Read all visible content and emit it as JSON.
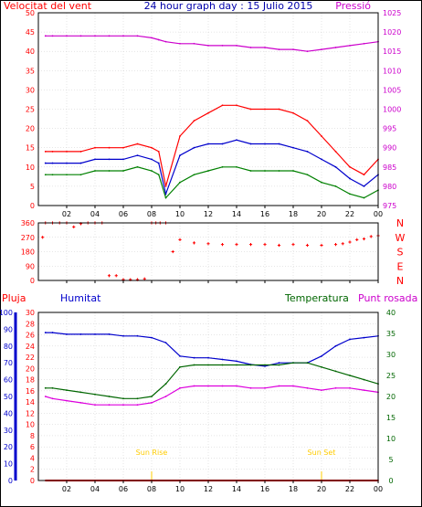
{
  "title": "24 hour graph day : 15 Julio 2015",
  "colors": {
    "wind_speed": "#ff0000",
    "wind_avg": "#0000cc",
    "wind_low": "#008000",
    "wind_dir": "#ff0000",
    "pressure": "#cc00cc",
    "rain": "#ff0000",
    "humidity": "#0000cc",
    "temperature": "#006600",
    "dewpoint": "#dd00dd",
    "sun": "#ffcc00",
    "grid": "#cccccc",
    "axis": "#000000"
  },
  "x_ticks": [
    "02",
    "04",
    "06",
    "08",
    "10",
    "12",
    "14",
    "16",
    "18",
    "20",
    "22",
    "00"
  ],
  "chart_data": [
    {
      "type": "line",
      "title": "24 hour graph day : 15 Julio 2015",
      "ylabel": "Velocitat del vent",
      "y2label": "Pressió",
      "ylim": [
        0,
        50
      ],
      "y2lim": [
        975,
        1025
      ],
      "yticks": [
        0,
        5,
        10,
        15,
        20,
        25,
        30,
        35,
        40,
        45,
        50
      ],
      "y2ticks": [
        975,
        980,
        985,
        990,
        995,
        1000,
        1005,
        1010,
        1015,
        1020,
        1025
      ],
      "x": [
        0.5,
        1,
        2,
        3,
        4,
        5,
        6,
        7,
        8,
        8.5,
        9,
        10,
        11,
        12,
        13,
        14,
        15,
        16,
        17,
        18,
        19,
        20,
        21,
        22,
        23,
        24
      ],
      "series": [
        {
          "key": "gust",
          "axis": "left",
          "values": [
            14,
            14,
            14,
            14,
            15,
            15,
            15,
            16,
            15,
            14,
            5,
            18,
            22,
            24,
            26,
            26,
            25,
            25,
            25,
            24,
            22,
            18,
            14,
            10,
            8,
            12
          ]
        },
        {
          "key": "avg",
          "axis": "left",
          "values": [
            11,
            11,
            11,
            11,
            12,
            12,
            12,
            13,
            12,
            11,
            3,
            13,
            15,
            16,
            16,
            17,
            16,
            16,
            16,
            15,
            14,
            12,
            10,
            7,
            5,
            8
          ]
        },
        {
          "key": "low",
          "axis": "left",
          "values": [
            8,
            8,
            8,
            8,
            9,
            9,
            9,
            10,
            9,
            8,
            2,
            6,
            8,
            9,
            10,
            10,
            9,
            9,
            9,
            9,
            8,
            6,
            5,
            3,
            2,
            4
          ]
        },
        {
          "key": "pressure",
          "axis": "right",
          "values": [
            1019,
            1019,
            1019,
            1019,
            1019,
            1019,
            1019,
            1019,
            1018.5,
            1018,
            1017.5,
            1017,
            1017,
            1016.5,
            1016.5,
            1016.5,
            1016,
            1016,
            1015.5,
            1015.5,
            1015,
            1015.5,
            1016,
            1016.5,
            1017,
            1017.5
          ]
        }
      ]
    },
    {
      "type": "scatter",
      "ylim": [
        0,
        360
      ],
      "yticks": [
        0,
        90,
        180,
        270,
        360
      ],
      "cardinal_labels": [
        "N",
        "W",
        "S",
        "E",
        "N"
      ],
      "series": [
        {
          "key": "wind_dir",
          "x": [
            0.3,
            0.5,
            1,
            1.5,
            2,
            2.5,
            3,
            3.5,
            4,
            4.5,
            5,
            5.5,
            6,
            6.5,
            7,
            7.5,
            8,
            8.3,
            8.6,
            9,
            9.5,
            10,
            11,
            12,
            13,
            14,
            15,
            16,
            17,
            18,
            19,
            20,
            21,
            21.5,
            22,
            22.5,
            23,
            23.5,
            24
          ],
          "values": [
            270,
            360,
            360,
            360,
            360,
            335,
            355,
            360,
            360,
            360,
            30,
            30,
            5,
            5,
            5,
            10,
            360,
            360,
            360,
            360,
            180,
            255,
            235,
            230,
            225,
            225,
            225,
            225,
            220,
            225,
            220,
            220,
            225,
            230,
            240,
            255,
            260,
            275,
            280
          ]
        }
      ]
    },
    {
      "type": "line",
      "ylabel": "Humitat",
      "y2label": "Temperatura",
      "labels": [
        "Pluja",
        "Punt rosada"
      ],
      "ylim_humidity": [
        0,
        100
      ],
      "ylim_rain": [
        0,
        30
      ],
      "y2lim": [
        0,
        40
      ],
      "yticks_humidity": [
        0,
        10,
        20,
        30,
        40,
        50,
        60,
        70,
        80,
        90,
        100
      ],
      "yticks_rain": [
        0,
        2,
        4,
        6,
        8,
        10,
        12,
        14,
        16,
        18,
        20,
        22,
        24,
        26,
        28,
        30
      ],
      "y2ticks": [
        0,
        5,
        10,
        15,
        20,
        25,
        30,
        35,
        40
      ],
      "annotations": [
        "Sun Rise",
        "Sun Set"
      ],
      "sunrise_hour": 8,
      "sunset_hour": 20,
      "x": [
        0.5,
        1,
        2,
        3,
        4,
        5,
        6,
        7,
        8,
        9,
        10,
        11,
        12,
        13,
        14,
        15,
        16,
        17,
        18,
        19,
        20,
        21,
        22,
        23,
        24
      ],
      "series": [
        {
          "key": "humidity",
          "axis": "humidity",
          "values": [
            88,
            88,
            87,
            87,
            87,
            87,
            86,
            86,
            85,
            82,
            74,
            73,
            73,
            72,
            71,
            69,
            68,
            70,
            70,
            70,
            74,
            80,
            84,
            85,
            86
          ]
        },
        {
          "key": "rain",
          "axis": "rain",
          "values": [
            0,
            0,
            0,
            0,
            0,
            0,
            0,
            0,
            0,
            0,
            0,
            0,
            0,
            0,
            0,
            0,
            0,
            0,
            0,
            0,
            0,
            0,
            0,
            0,
            0
          ]
        },
        {
          "key": "temperature",
          "axis": "right",
          "values": [
            22,
            22,
            21.5,
            21,
            20.5,
            20,
            19.5,
            19.5,
            20,
            23,
            27,
            27.5,
            27.5,
            27.5,
            27.5,
            27.5,
            27.5,
            27.5,
            28,
            28,
            27,
            26,
            25,
            24,
            23
          ]
        },
        {
          "key": "dewpoint",
          "axis": "right",
          "values": [
            20,
            19.5,
            19,
            18.5,
            18,
            18,
            18,
            18,
            18.5,
            20,
            22,
            22.5,
            22.5,
            22.5,
            22.5,
            22,
            22,
            22.5,
            22.5,
            22,
            21.5,
            22,
            22,
            21.5,
            21
          ]
        }
      ]
    }
  ],
  "labels": {
    "wind_speed": "Velocitat del vent",
    "pressure": "Pressió",
    "rain": "Pluja",
    "humidity": "Humitat",
    "temperature": "Temperatura",
    "dewpoint": "Punt rosada",
    "sunrise": "Sun Rise",
    "sunset": "Sun Set"
  }
}
